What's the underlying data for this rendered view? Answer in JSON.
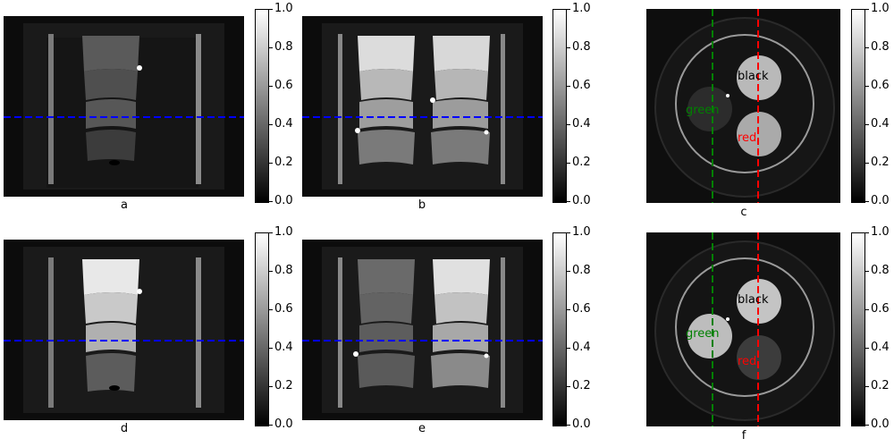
{
  "panels": {
    "a": {
      "caption": "a"
    },
    "b": {
      "caption": "b"
    },
    "c": {
      "caption": "c",
      "labels": {
        "black": "black",
        "green": "green",
        "red": "red"
      }
    },
    "d": {
      "caption": "d"
    },
    "e": {
      "caption": "e"
    },
    "f": {
      "caption": "f",
      "labels": {
        "black": "black",
        "green": "green",
        "red": "red"
      }
    }
  },
  "colorbar": {
    "ticks": [
      "1.0",
      "0.8",
      "0.6",
      "0.4",
      "0.2",
      "0.0"
    ],
    "range": [
      0.0,
      1.0
    ],
    "colormap": "gray"
  },
  "line_colors": {
    "profile": "#0000ff",
    "green": "#008000",
    "red": "#ff0000",
    "black": "#000000"
  }
}
